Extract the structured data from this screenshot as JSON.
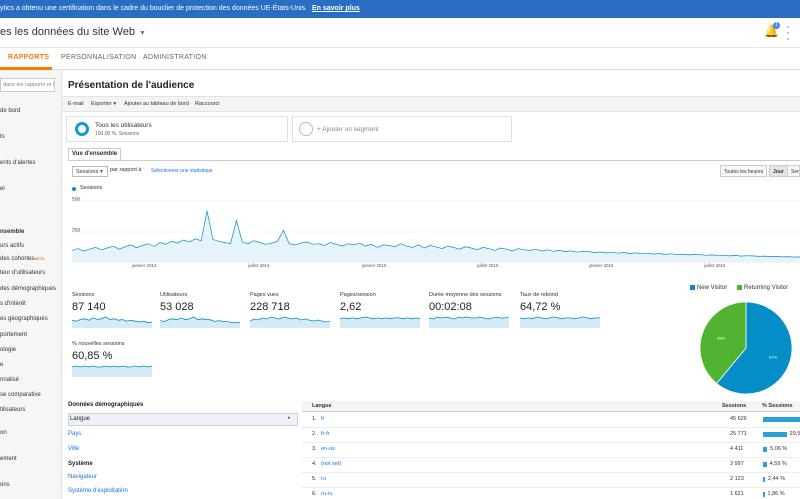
{
  "banner": {
    "text": "ytics a obtenu une certification dans le cadre du bouclier de protection des données UE-États-Unis.",
    "link": "En savoir plus"
  },
  "header": {
    "account": "es les données du site Web",
    "notification_count": "1"
  },
  "nav": {
    "tabs": [
      {
        "label": "RAPPORTS",
        "active": true
      },
      {
        "label": "PERSONNALISATION"
      },
      {
        "label": "ADMINISTRATION"
      }
    ]
  },
  "sidebar": {
    "search_placeholder": "dans les rapports et l",
    "items": [
      {
        "label": "de bord"
      },
      {
        "label": "ts"
      },
      {
        "label": "ents d'alertes"
      },
      {
        "label": "el"
      },
      {
        "label": "nsemble",
        "bold": true
      },
      {
        "label": "urs actifs"
      },
      {
        "label": "des cohortes",
        "beta": "BETA"
      },
      {
        "label": "teur d'utilisateurs"
      },
      {
        "label": "des démographiques"
      },
      {
        "label": "s d'intérêt"
      },
      {
        "label": "es géographiques"
      },
      {
        "label": "portement"
      },
      {
        "label": "ologie"
      },
      {
        "label": "e"
      },
      {
        "label": "nnalisé"
      },
      {
        "label": "se comparative"
      },
      {
        "label": "tilisateurs"
      },
      {
        "label": "on"
      },
      {
        "label": "ement"
      },
      {
        "label": "ons"
      }
    ]
  },
  "main": {
    "title": "Présentation de l'audience",
    "actions": [
      "E-mail",
      "Exporter ▾",
      "Ajouter au tableau de bord",
      "Raccourci"
    ],
    "segment": {
      "name": "Tous les utilisateurs",
      "sub": "100,00 %, Sessions"
    },
    "add_segment": "+ Ajouter un segment",
    "view_tab": "Vue d'ensemble",
    "metric_select": "Sessions",
    "vs_label": "par rapport à",
    "select_stat": "Sélectionner une statistique",
    "periods": [
      "Toutes les heures",
      "Jour",
      "Sem"
    ]
  },
  "chart_data": {
    "type": "line",
    "series": [
      {
        "name": "Sessions"
      }
    ],
    "y_ticks": [
      "500",
      "250"
    ],
    "x_ticks": [
      "janvier 2014",
      "juillet 2014",
      "janvier 2015",
      "juillet 2015",
      "janvier 2016",
      "juillet 2016"
    ],
    "ylim": [
      0,
      500
    ],
    "values": [
      95,
      110,
      90,
      105,
      120,
      100,
      115,
      130,
      105,
      125,
      140,
      118,
      135,
      150,
      128,
      160,
      145,
      170,
      155,
      180,
      165,
      190,
      175,
      420,
      185,
      170,
      160,
      150,
      340,
      165,
      150,
      175,
      160,
      145,
      155,
      170,
      260,
      150,
      140,
      155,
      165,
      145,
      150,
      135,
      160,
      145,
      130,
      150,
      140,
      155,
      130,
      145,
      120,
      140,
      135,
      125,
      150,
      130,
      120,
      140,
      115,
      135,
      125,
      110,
      130,
      120,
      105,
      125,
      115,
      100,
      120,
      110,
      95,
      115,
      105,
      90,
      110,
      100,
      95,
      105,
      90,
      100,
      88,
      95,
      85,
      92,
      80,
      88,
      85,
      78,
      82,
      75,
      80,
      72,
      78,
      70,
      75,
      68,
      72,
      65,
      70,
      62,
      68,
      60,
      65,
      58,
      62,
      60,
      55,
      58,
      52,
      56,
      50,
      54,
      48,
      52,
      50,
      46,
      48,
      44,
      46,
      42,
      44,
      40,
      42
    ]
  },
  "metrics": [
    {
      "label": "Sessions",
      "value": "87 140",
      "trend": [
        8,
        7,
        9,
        10,
        8,
        11,
        9,
        10,
        12,
        9,
        10,
        8,
        9,
        7,
        8,
        7,
        6,
        7,
        5,
        6
      ]
    },
    {
      "label": "Utilisateurs",
      "value": "53 028",
      "trend": [
        7,
        6,
        8,
        9,
        8,
        10,
        8,
        9,
        11,
        8,
        9,
        8,
        8,
        6,
        7,
        6,
        6,
        5,
        5,
        5
      ]
    },
    {
      "label": "Pages vues",
      "value": "228 718",
      "trend": [
        6,
        8,
        7,
        9,
        8,
        10,
        9,
        8,
        10,
        9,
        8,
        9,
        7,
        8,
        7,
        6,
        7,
        6,
        5,
        6
      ]
    },
    {
      "label": "Pages/session",
      "value": "2,62",
      "trend": [
        9,
        10,
        9,
        10,
        9,
        10,
        11,
        10,
        9,
        10,
        9,
        10,
        9,
        10,
        10,
        9,
        10,
        9,
        10,
        9
      ]
    },
    {
      "label": "Durée moyenne des sessions",
      "value": "00:02:08",
      "trend": [
        9,
        8,
        10,
        9,
        10,
        9,
        8,
        10,
        9,
        10,
        9,
        9,
        10,
        9,
        8,
        9,
        10,
        9,
        9,
        10
      ]
    },
    {
      "label": "Taux de rebond",
      "value": "64,72 %",
      "trend": [
        10,
        9,
        10,
        9,
        11,
        10,
        9,
        10,
        11,
        10,
        9,
        10,
        10,
        9,
        10,
        11,
        10,
        9,
        10,
        10
      ]
    },
    {
      "label": "% nouvelles sessions",
      "value": "60,85 %",
      "trend": [
        9,
        10,
        9,
        10,
        9,
        10,
        9,
        9,
        10,
        9,
        10,
        9,
        10,
        9,
        9,
        10,
        9,
        10,
        9,
        10
      ]
    }
  ],
  "pie": {
    "legend": [
      {
        "label": "New Visitor",
        "color": "#058dc7"
      },
      {
        "label": "Returning Visitor",
        "color": "#50b432"
      }
    ],
    "values": [
      {
        "label": "61%",
        "fraction": 0.61
      },
      {
        "label": "39%",
        "fraction": 0.39
      }
    ]
  },
  "demographics": {
    "head1": "Données démographiques",
    "selected": "Langue",
    "items1": [
      "Pays",
      "Ville"
    ],
    "head2": "Système",
    "items2": [
      "Navigateur",
      "Système d'exploitation"
    ]
  },
  "table": {
    "headers": {
      "dim": "Langue",
      "sessions": "Sessions",
      "pct": "% Sessions"
    },
    "rows": [
      {
        "num": "1.",
        "lang": "fr",
        "sessions": "45 626",
        "pct": "52,",
        "frac": 0.52
      },
      {
        "num": "2.",
        "lang": "fr-fr",
        "sessions": "25 771",
        "pct": "29,57 %",
        "frac": 0.296
      },
      {
        "num": "3.",
        "lang": "en-us",
        "sessions": "4 411",
        "pct": "5,06 %",
        "frac": 0.051
      },
      {
        "num": "4.",
        "lang": "(not set)",
        "sessions": "3 997",
        "pct": "4,59 %",
        "frac": 0.046
      },
      {
        "num": "5.",
        "lang": "ru",
        "sessions": "2 123",
        "pct": "2,44 %",
        "frac": 0.024
      },
      {
        "num": "6.",
        "lang": "ru-ru",
        "sessions": "1 621",
        "pct": "1,86 %",
        "frac": 0.019
      }
    ]
  }
}
